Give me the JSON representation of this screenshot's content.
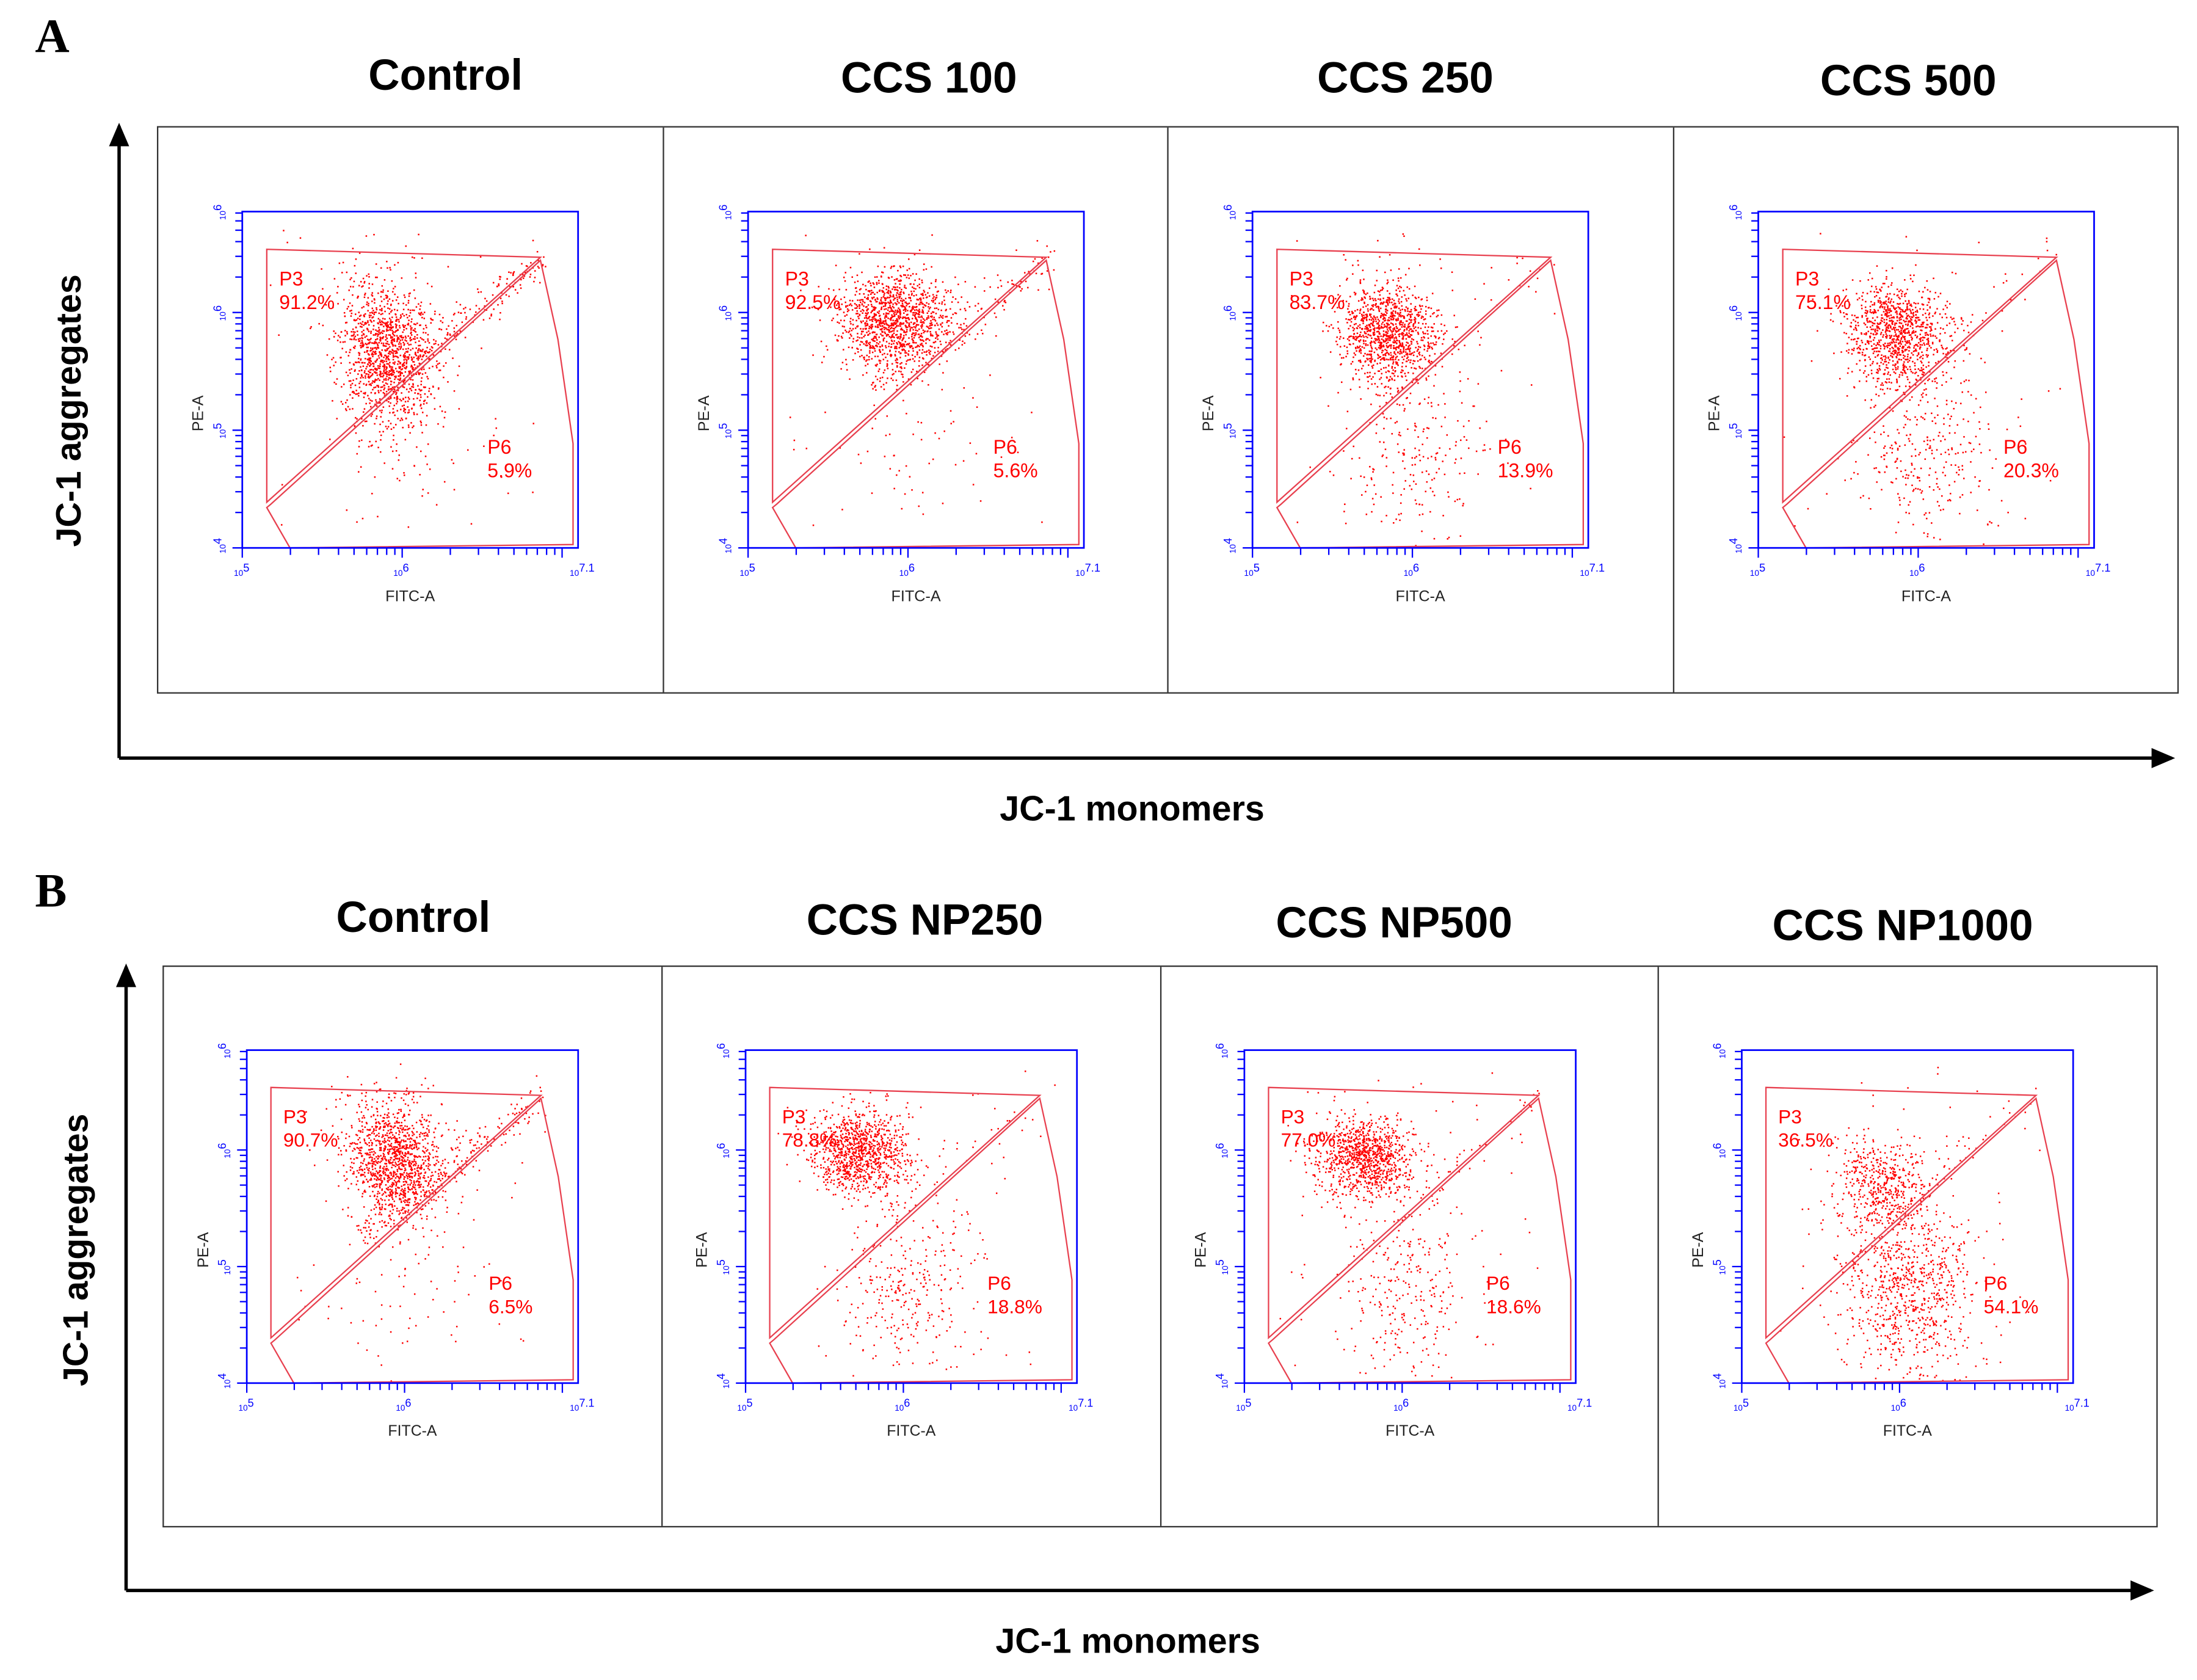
{
  "panels": [
    {
      "letter": "A",
      "y_axis_label": "JC-1 aggregates",
      "x_axis_label": "JC-1 monomers"
    },
    {
      "letter": "B",
      "y_axis_label": "JC-1 aggregates",
      "x_axis_label": "JC-1 monomers"
    }
  ],
  "chart_data": {
    "type": "scatter",
    "description_axes": {
      "x": "FITC-A",
      "y": "PE-A"
    },
    "x_ticks": [
      {
        "base": "10",
        "exp": "5"
      },
      {
        "base": "10",
        "exp": "6"
      },
      {
        "base": "10",
        "exp": "7.1"
      }
    ],
    "y_ticks": [
      {
        "base": "10",
        "exp": "4"
      },
      {
        "base": "10",
        "exp": "5"
      },
      {
        "base": "10",
        "exp": "6"
      },
      {
        "base": "10",
        "exp": "6"
      }
    ],
    "xlim_log10": [
      5,
      7.1
    ],
    "gate_labels": [
      "P3",
      "P6"
    ],
    "colors": {
      "points": "#ff0000",
      "frame": "#0000ff",
      "gate": "#e8404f"
    },
    "plots": [
      {
        "panel": "A",
        "title": "Control",
        "P3": "91.2%",
        "P6": "5.9%"
      },
      {
        "panel": "A",
        "title": "CCS 100",
        "P3": "92.5%",
        "P6": "5.6%"
      },
      {
        "panel": "A",
        "title": "CCS 250",
        "P3": "83.7%",
        "P6": "13.9%"
      },
      {
        "panel": "A",
        "title": "CCS 500",
        "P3": "75.1%",
        "P6": "20.3%"
      },
      {
        "panel": "B",
        "title": "Control",
        "P3": "90.7%",
        "P6": "6.5%"
      },
      {
        "panel": "B",
        "title": "CCS NP250",
        "P3": "78.8%",
        "P6": "18.8%"
      },
      {
        "panel": "B",
        "title": "CCS NP500",
        "P3": "77.0%",
        "P6": "18.6%"
      },
      {
        "panel": "B",
        "title": "CCS NP1000",
        "P3": "36.5%",
        "P6": "54.1%"
      }
    ]
  }
}
